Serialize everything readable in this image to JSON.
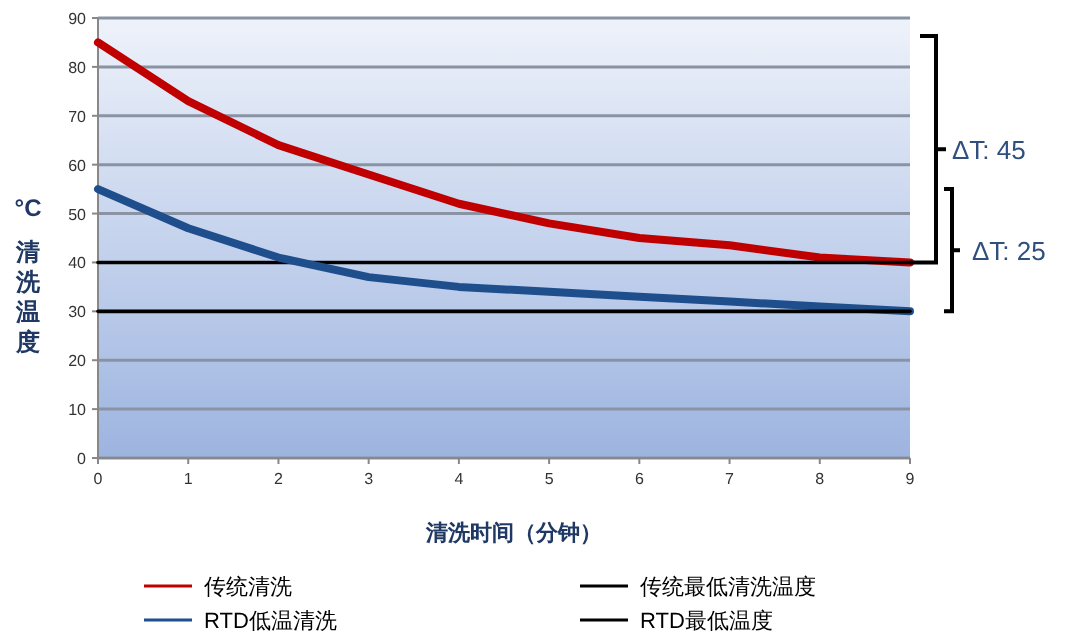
{
  "chart_data": {
    "type": "line",
    "xlabel": "清洗时间（分钟）",
    "ylabel": "°C 清洗温度",
    "x": [
      0,
      1,
      2,
      3,
      4,
      5,
      6,
      7,
      8,
      9
    ],
    "series": [
      {
        "name": "传统清洗",
        "color": "#c00000",
        "values": [
          85,
          73,
          64,
          58,
          52,
          48,
          45,
          43.5,
          41,
          40
        ]
      },
      {
        "name": "传统最低清洗温度",
        "color": "#000000",
        "values": [
          40,
          40,
          40,
          40,
          40,
          40,
          40,
          40,
          40,
          40
        ]
      },
      {
        "name": "RTD低温清洗",
        "color": "#1f4e8c",
        "values": [
          55,
          47,
          41,
          37,
          35,
          34,
          33,
          32,
          31,
          30
        ]
      },
      {
        "name": "RTD最低温度",
        "color": "#000000",
        "values": [
          30,
          30,
          30,
          30,
          30,
          30,
          30,
          30,
          30,
          30
        ]
      }
    ],
    "xlim": [
      0,
      9
    ],
    "xticks": [
      0,
      1,
      2,
      3,
      4,
      5,
      6,
      7,
      8,
      9
    ],
    "ylim": [
      0,
      90
    ],
    "yticks": [
      0,
      10,
      20,
      30,
      40,
      50,
      60,
      70,
      80,
      90
    ],
    "grid": "y",
    "legend": "bottom",
    "marker": "none",
    "line_style": "solid",
    "annotations": [
      "ΔT: 45",
      "ΔT: 25"
    ]
  }
}
